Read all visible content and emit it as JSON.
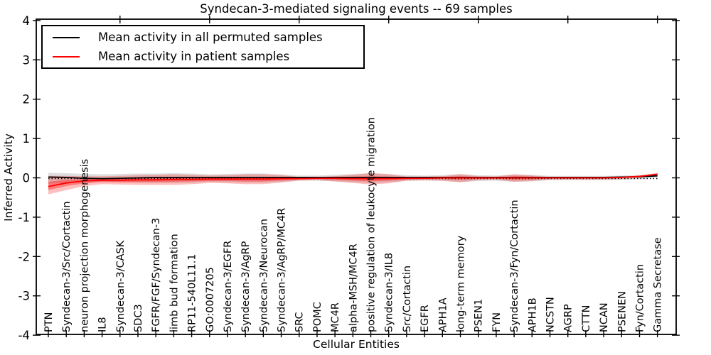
{
  "chart_data": {
    "type": "line",
    "title": "Syndecan-3-mediated signaling events -- 69 samples",
    "xlabel": "Cellular Entities",
    "ylabel": "Inferred Activity",
    "ylim": [
      -4,
      4
    ],
    "yticks": [
      4,
      3,
      2,
      1,
      0,
      -1,
      -2,
      -3,
      -4
    ],
    "grid": false,
    "legend_position": "upper left",
    "zero_line": {
      "value": 0,
      "style": "dotted",
      "color": "#000000"
    },
    "categories": [
      "PTN",
      "Syndecan-3/Src/Cortactin",
      "neuron projection morphogenesis",
      "IL8",
      "Syndecan-3/CASK",
      "SDC3",
      "FGFR/FGF/Syndecan-3",
      "limb bud formation",
      "RP11-540L11.1",
      "GO:0007205",
      "Syndecan-3/EGFR",
      "Syndecan-3/AgRP",
      "Syndecan-3/Neurocan",
      "Syndecan-3/AgRP/MC4R",
      "SRC",
      "POMC",
      "MC4R",
      "alpha-MSH/MC4R",
      "positive regulation of leukocyte migration",
      "Syndecan-3/IL8",
      "Src/Cortactin",
      "EGFR",
      "APH1A",
      "long-term memory",
      "PSEN1",
      "FYN",
      "Syndecan-3/Fyn/Cortactin",
      "APH1B",
      "NCSTN",
      "AGRP",
      "CTTN",
      "NCAN",
      "PSENEN",
      "Fyn/Cortactin",
      "Gamma Secretase"
    ],
    "series": [
      {
        "name": "Mean activity in all permuted samples",
        "color": "#000000",
        "values": [
          0.02,
          0.01,
          -0.01,
          -0.02,
          -0.01,
          0.0,
          0.01,
          0.01,
          0.01,
          0.01,
          0.01,
          0.01,
          0.01,
          0.01,
          0.01,
          0.01,
          0.01,
          0.01,
          0.01,
          0.01,
          0.01,
          0.01,
          0.01,
          0.01,
          0.01,
          0.01,
          0.01,
          0.01,
          0.01,
          0.01,
          0.01,
          0.01,
          0.02,
          0.03,
          0.05
        ]
      },
      {
        "name": "Mean activity in patient samples",
        "color": "#ff0000",
        "values": [
          -0.22,
          -0.13,
          -0.08,
          -0.06,
          -0.06,
          -0.05,
          -0.05,
          -0.04,
          -0.04,
          -0.03,
          -0.03,
          -0.03,
          -0.03,
          -0.02,
          -0.02,
          -0.01,
          -0.01,
          -0.02,
          -0.02,
          -0.02,
          -0.01,
          -0.01,
          0.0,
          0.0,
          0.0,
          0.0,
          0.0,
          0.0,
          0.0,
          0.0,
          0.0,
          0.0,
          0.01,
          0.04,
          0.09
        ]
      }
    ],
    "bands": [
      {
        "name": "permuted-range",
        "color": "rgba(0,0,0,0.13)",
        "upper": [
          0.13,
          0.12,
          0.1,
          0.09,
          0.1,
          0.11,
          0.11,
          0.12,
          0.11,
          0.09,
          0.1,
          0.11,
          0.11,
          0.09,
          0.06,
          0.06,
          0.08,
          0.1,
          0.12,
          0.1,
          0.07,
          0.06,
          0.07,
          0.1,
          0.07,
          0.06,
          0.09,
          0.08,
          0.05,
          0.05,
          0.05,
          0.05,
          0.06,
          0.07,
          0.11
        ],
        "lower": [
          -0.15,
          -0.13,
          -0.12,
          -0.11,
          -0.11,
          -0.12,
          -0.12,
          -0.13,
          -0.12,
          -0.1,
          -0.11,
          -0.12,
          -0.12,
          -0.1,
          -0.07,
          -0.07,
          -0.09,
          -0.11,
          -0.13,
          -0.11,
          -0.08,
          -0.07,
          -0.08,
          -0.11,
          -0.08,
          -0.07,
          -0.1,
          -0.09,
          -0.06,
          -0.06,
          -0.06,
          -0.06,
          -0.05,
          -0.03,
          0.0
        ]
      },
      {
        "name": "patient-range-outer",
        "color": "rgba(255,0,0,0.25)",
        "upper": [
          0.05,
          0.05,
          0.04,
          0.04,
          0.05,
          0.07,
          0.08,
          0.09,
          0.08,
          0.06,
          0.07,
          0.09,
          0.09,
          0.07,
          0.02,
          0.02,
          0.04,
          0.08,
          0.12,
          0.09,
          0.03,
          0.03,
          0.04,
          0.09,
          0.04,
          0.03,
          0.09,
          0.06,
          0.02,
          0.02,
          0.02,
          0.02,
          0.03,
          0.05,
          0.13
        ],
        "lower": [
          -0.42,
          -0.31,
          -0.21,
          -0.16,
          -0.17,
          -0.18,
          -0.18,
          -0.18,
          -0.16,
          -0.13,
          -0.14,
          -0.16,
          -0.16,
          -0.12,
          -0.07,
          -0.06,
          -0.09,
          -0.13,
          -0.17,
          -0.14,
          -0.07,
          -0.06,
          -0.07,
          -0.11,
          -0.06,
          -0.05,
          -0.1,
          -0.08,
          -0.04,
          -0.04,
          -0.04,
          -0.04,
          -0.03,
          0.0,
          0.05
        ]
      },
      {
        "name": "patient-range-inner",
        "color": "rgba(255,0,0,0.35)",
        "upper": [
          -0.1,
          -0.05,
          -0.03,
          -0.02,
          -0.01,
          0.0,
          0.01,
          0.02,
          0.01,
          0.01,
          0.02,
          0.02,
          0.02,
          0.02,
          0.0,
          0.0,
          0.01,
          0.03,
          0.04,
          0.03,
          0.01,
          0.01,
          0.02,
          0.04,
          0.02,
          0.01,
          0.04,
          0.03,
          0.01,
          0.01,
          0.01,
          0.01,
          0.02,
          0.04,
          0.11
        ],
        "lower": [
          -0.31,
          -0.21,
          -0.14,
          -0.1,
          -0.11,
          -0.11,
          -0.11,
          -0.1,
          -0.09,
          -0.08,
          -0.08,
          -0.09,
          -0.09,
          -0.07,
          -0.04,
          -0.03,
          -0.05,
          -0.07,
          -0.09,
          -0.07,
          -0.04,
          -0.03,
          -0.03,
          -0.05,
          -0.03,
          -0.02,
          -0.05,
          -0.04,
          -0.02,
          -0.02,
          -0.02,
          -0.02,
          -0.01,
          0.02,
          0.07
        ]
      }
    ]
  }
}
